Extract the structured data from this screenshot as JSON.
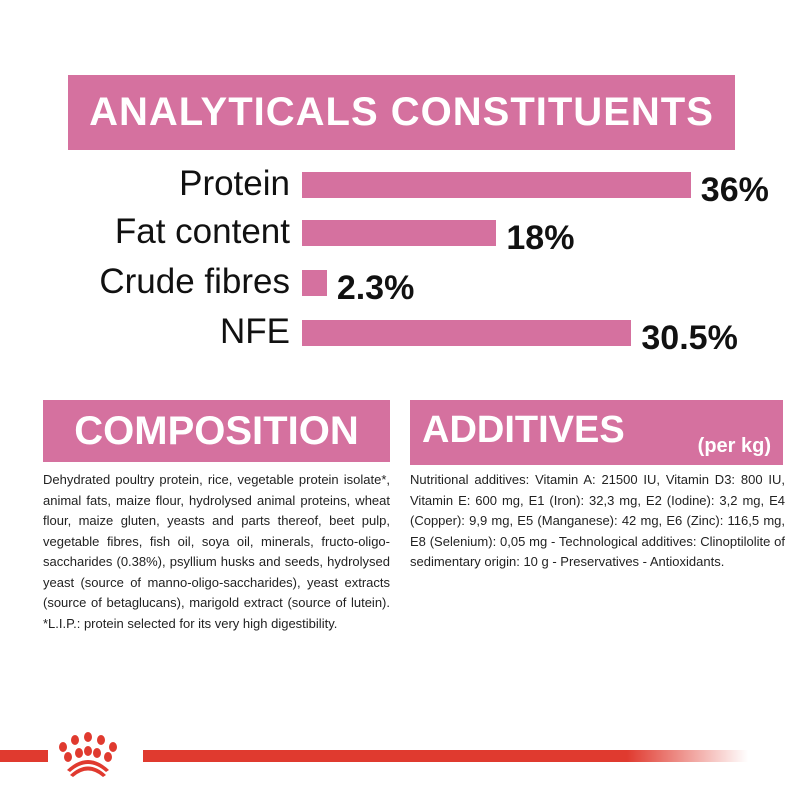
{
  "header": {
    "title": "ANALYTICALS CONSTITUENTS"
  },
  "chart_data": {
    "type": "bar",
    "orientation": "horizontal",
    "categories": [
      "Protein",
      "Fat content",
      "Crude fibres",
      "NFE"
    ],
    "values": [
      36,
      18,
      2.3,
      30.5
    ],
    "value_labels": [
      "36%",
      "18%",
      "2.3%",
      "30.5%"
    ],
    "unit": "%",
    "bar_color": "#d5719f",
    "grid": false
  },
  "composition": {
    "title": "COMPOSITION",
    "text": "Dehydrated poultry protein, rice, vegetable protein isolate*, animal fats, maize flour, hydrolysed animal proteins, wheat flour, maize gluten, yeasts and parts thereof, beet pulp, vegetable fibres, fish oil, soya oil, minerals, fructo-oligo-saccharides (0.38%), psyllium husks and seeds, hydrolysed yeast (source of manno-oligo-saccharides), yeast extracts (source of betaglucans), marigold extract (source of lutein). *L.I.P.: protein selected for its very high digestibility."
  },
  "additives": {
    "title": "ADDITIVES",
    "subtitle": "(per kg)",
    "text": "Nutritional additives: Vitamin A: 21500 IU, Vitamin D3: 800 IU, Vitamin E: 600 mg, E1 (Iron): 32,3 mg, E2 (Iodine): 3,2 mg, E4 (Copper): 9,9 mg, E5 (Manganese): 42 mg, E6 (Zinc): 116,5 mg, E8 (Selenium): 0,05 mg - Technological additives: Clinoptilolite of sedimentary origin: 10 g - Preservatives - Antioxidants."
  },
  "colors": {
    "accent": "#d5719f",
    "brand_red": "#e03a2f"
  },
  "footer": {
    "logo": "royal-canin-crown"
  }
}
